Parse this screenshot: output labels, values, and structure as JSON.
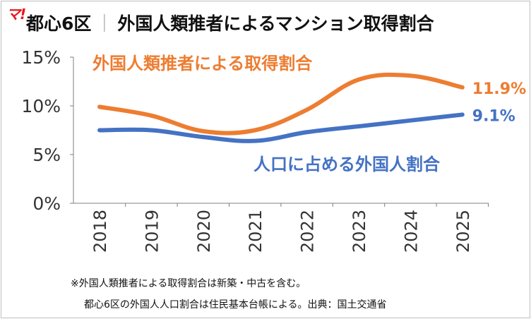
{
  "header": {
    "logo_text": "マ!",
    "title_left": "都心6区",
    "title_right": "外国人類推者によるマンション取得割合"
  },
  "notes": [
    "※外国人類推者による取得割合は新築・中古を含む。",
    "都心6区の外国人人口割合は住民基本台帳による。出典：国土交通省"
  ],
  "chart_data": {
    "type": "line",
    "categories": [
      "2018",
      "2019",
      "2020",
      "2021",
      "2022",
      "2023",
      "2024",
      "2025"
    ],
    "y_ticks": [
      0,
      5,
      10,
      15
    ],
    "y_tick_labels": [
      "0%",
      "5%",
      "10%",
      "15%"
    ],
    "ylim": [
      0,
      15
    ],
    "grid": false,
    "series": [
      {
        "name": "外国人類推者による取得割合",
        "color": "#ed7d31",
        "values": [
          9.9,
          9.0,
          7.4,
          7.5,
          9.6,
          12.7,
          13.1,
          11.9
        ],
        "end_label": "11.9%"
      },
      {
        "name": "人口に占める外国人割合",
        "color": "#4472c4",
        "values": [
          7.5,
          7.5,
          6.8,
          6.4,
          7.3,
          7.9,
          8.5,
          9.1
        ],
        "end_label": "9.1%"
      }
    ]
  }
}
